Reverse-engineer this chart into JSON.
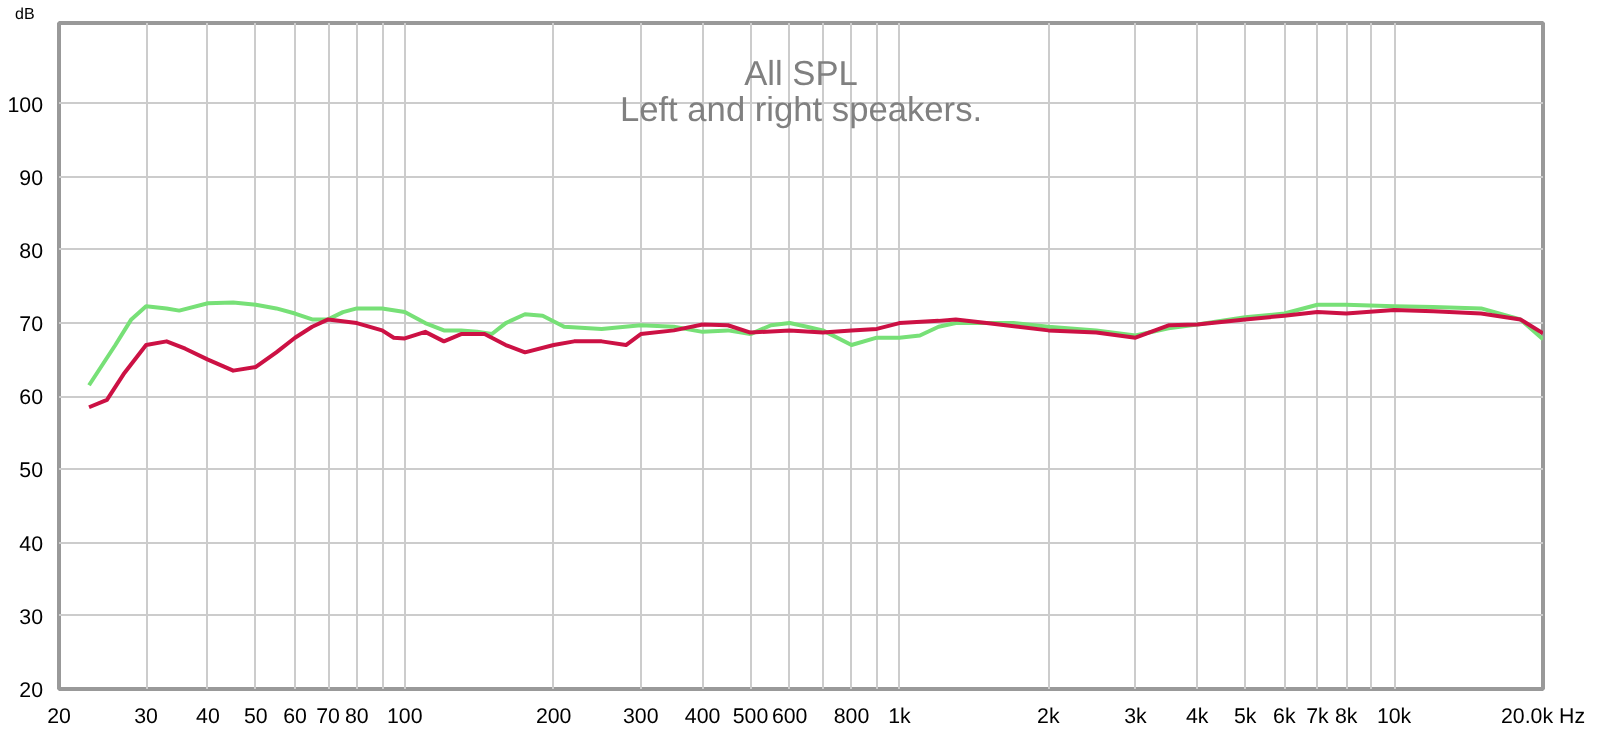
{
  "chart_data": {
    "type": "line",
    "title": "All SPL",
    "subtitle": "Left and right speakers.",
    "ylabel": "dB",
    "log": "x",
    "grid": true,
    "marker": "none",
    "line_style": "solid",
    "xlim": [
      20,
      20000
    ],
    "ylim": [
      20,
      111
    ],
    "xticks": [
      20,
      30,
      40,
      50,
      60,
      70,
      80,
      {
        "value": 90,
        "label": null
      },
      100,
      200,
      300,
      400,
      500,
      600,
      {
        "value": 700,
        "label": null
      },
      800,
      {
        "value": 900,
        "label": null
      },
      {
        "value": 1000,
        "label": "1k"
      },
      {
        "value": 2000,
        "label": "2k"
      },
      {
        "value": 3000,
        "label": "3k"
      },
      {
        "value": 4000,
        "label": "4k"
      },
      {
        "value": 5000,
        "label": "5k"
      },
      {
        "value": 6000,
        "label": "6k"
      },
      {
        "value": 7000,
        "label": "7k"
      },
      {
        "value": 8000,
        "label": "8k"
      },
      {
        "value": 9000,
        "label": null
      },
      {
        "value": 10000,
        "label": "10k"
      },
      {
        "value": 20000,
        "label": "20.0k Hz"
      }
    ],
    "yticks": [
      20,
      30,
      40,
      50,
      60,
      70,
      80,
      90,
      100
    ],
    "series": [
      {
        "color": "#77e077",
        "x": [
          23,
          26,
          28,
          30,
          33,
          35,
          40,
          45,
          50,
          55,
          60,
          65,
          70,
          75,
          80,
          90,
          100,
          110,
          120,
          130,
          140,
          150,
          160,
          175,
          190,
          210,
          250,
          300,
          350,
          400,
          450,
          500,
          550,
          600,
          650,
          700,
          800,
          900,
          1000,
          1100,
          1200,
          1300,
          1500,
          1700,
          2000,
          2500,
          3000,
          3500,
          4000,
          5000,
          6000,
          7000,
          8000,
          10000,
          12000,
          15000,
          18000,
          20000
        ],
        "values": [
          61.5,
          67,
          70.5,
          72.3,
          72,
          71.7,
          72.7,
          72.8,
          72.5,
          72,
          71.3,
          70.5,
          70.5,
          71.5,
          72,
          72,
          71.5,
          70,
          69,
          69,
          68.8,
          68.5,
          70,
          71.2,
          71,
          69.5,
          69.2,
          69.7,
          69.5,
          68.8,
          69,
          68.5,
          69.7,
          70,
          69.5,
          69,
          67,
          68,
          68,
          68.3,
          69.5,
          70,
          70,
          70,
          69.5,
          69,
          68.3,
          69.3,
          69.8,
          70.8,
          71.3,
          72.5,
          72.5,
          72.3,
          72.2,
          72,
          70.5,
          67.8
        ]
      },
      {
        "color": "#cc1144",
        "x": [
          23,
          25,
          27,
          30,
          33,
          36,
          40,
          45,
          50,
          55,
          60,
          65,
          70,
          80,
          90,
          95,
          100,
          110,
          120,
          130,
          145,
          160,
          175,
          200,
          220,
          250,
          280,
          300,
          350,
          400,
          450,
          500,
          600,
          700,
          800,
          900,
          1000,
          1200,
          1300,
          1500,
          2000,
          2500,
          3000,
          3500,
          4000,
          5000,
          6000,
          7000,
          8000,
          10000,
          12000,
          15000,
          18000,
          20000
        ],
        "values": [
          58.5,
          59.5,
          63,
          67,
          67.5,
          66.5,
          65,
          63.5,
          64,
          66,
          68,
          69.5,
          70.5,
          70,
          69,
          68,
          67.9,
          68.8,
          67.5,
          68.5,
          68.5,
          67,
          66,
          67,
          67.5,
          67.5,
          67,
          68.5,
          69,
          69.8,
          69.7,
          68.7,
          69,
          68.7,
          69,
          69.2,
          70,
          70.3,
          70.5,
          70,
          69,
          68.7,
          68,
          69.7,
          69.8,
          70.5,
          71,
          71.5,
          71.3,
          71.8,
          71.6,
          71.3,
          70.5,
          68.6
        ]
      }
    ]
  }
}
